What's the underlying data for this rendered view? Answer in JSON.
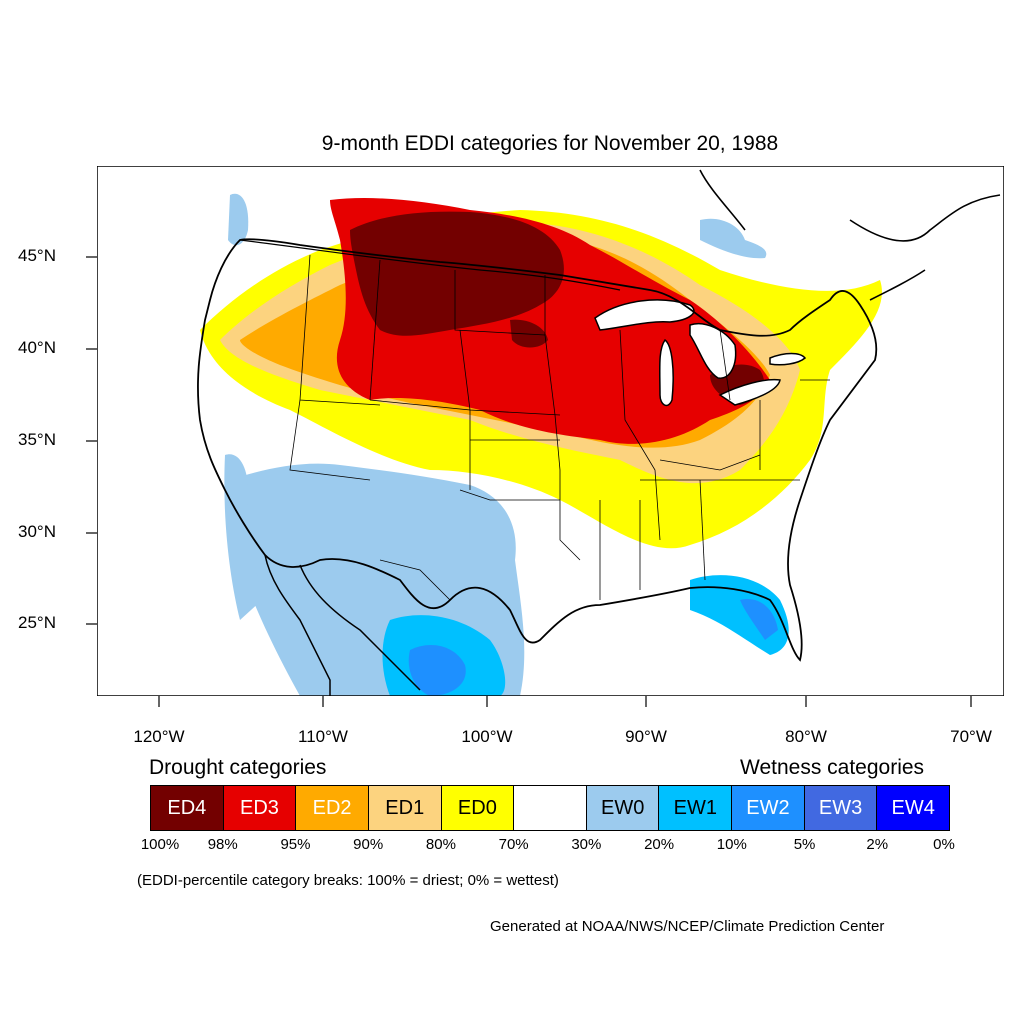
{
  "title": "9-month EDDI categories for November 20, 1988",
  "axes": {
    "lat_labels": [
      "45°N",
      "40°N",
      "35°N",
      "30°N",
      "25°N"
    ],
    "lon_labels": [
      "120°W",
      "110°W",
      "100°W",
      "90°W",
      "80°W",
      "70°W"
    ]
  },
  "legend": {
    "drought_heading": "Drought categories",
    "wetness_heading": "Wetness categories",
    "categories": [
      {
        "label": "ED4",
        "color": "#730000",
        "text_color": "#ffffff"
      },
      {
        "label": "ED3",
        "color": "#e60000",
        "text_color": "#ffffff"
      },
      {
        "label": "ED2",
        "color": "#ffaa00",
        "text_color": "#ffffff"
      },
      {
        "label": "ED1",
        "color": "#fcd37f",
        "text_color": "#000000"
      },
      {
        "label": "ED0",
        "color": "#ffff00",
        "text_color": "#000000"
      },
      {
        "label": "",
        "color": "#ffffff",
        "text_color": "#000000"
      },
      {
        "label": "EW0",
        "color": "#9ccbee",
        "text_color": "#000000"
      },
      {
        "label": "EW1",
        "color": "#00c0ff",
        "text_color": "#000000"
      },
      {
        "label": "EW2",
        "color": "#1e90ff",
        "text_color": "#ffffff"
      },
      {
        "label": "EW3",
        "color": "#4169e1",
        "text_color": "#ffffff"
      },
      {
        "label": "EW4",
        "color": "#0000ff",
        "text_color": "#ffffff"
      }
    ],
    "breaks": [
      "100%",
      "98%",
      "95%",
      "90%",
      "80%",
      "70%",
      "30%",
      "20%",
      "10%",
      "5%",
      "2%",
      "0%"
    ]
  },
  "note": "(EDDI-percentile category breaks: 100% = driest; 0% = wettest)",
  "credit": "Generated at NOAA/NWS/NCEP/Climate Prediction Center"
}
